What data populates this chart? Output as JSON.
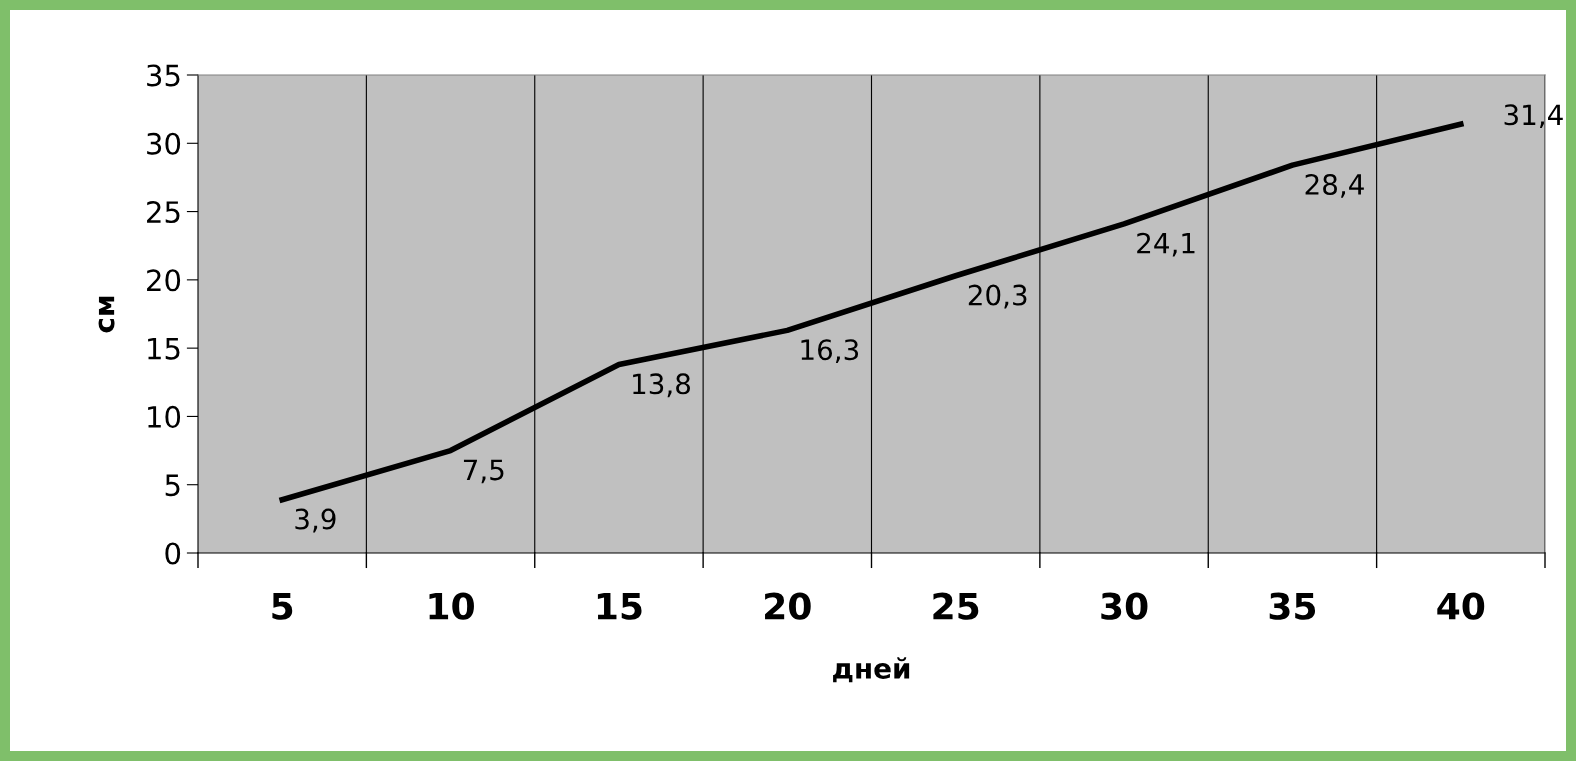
{
  "chart_data": {
    "type": "line",
    "xlabel": "дней",
    "ylabel": "см",
    "categories": [
      "5",
      "10",
      "15",
      "20",
      "25",
      "30",
      "35",
      "40"
    ],
    "series": [
      {
        "color": "#000000",
        "values": [
          3.9,
          7.5,
          13.8,
          16.3,
          20.3,
          24.1,
          28.4,
          31.4
        ],
        "value_labels": [
          "3,9",
          "7,5",
          "13,8",
          "16,3",
          "20,3",
          "24,1",
          "28,4",
          "31,4"
        ]
      }
    ],
    "ylim": [
      0,
      35
    ],
    "yticks": [
      0,
      5,
      10,
      15,
      20,
      25,
      30,
      35
    ],
    "grid": "x",
    "legend": false,
    "marker": "none",
    "line_style": "solid"
  }
}
